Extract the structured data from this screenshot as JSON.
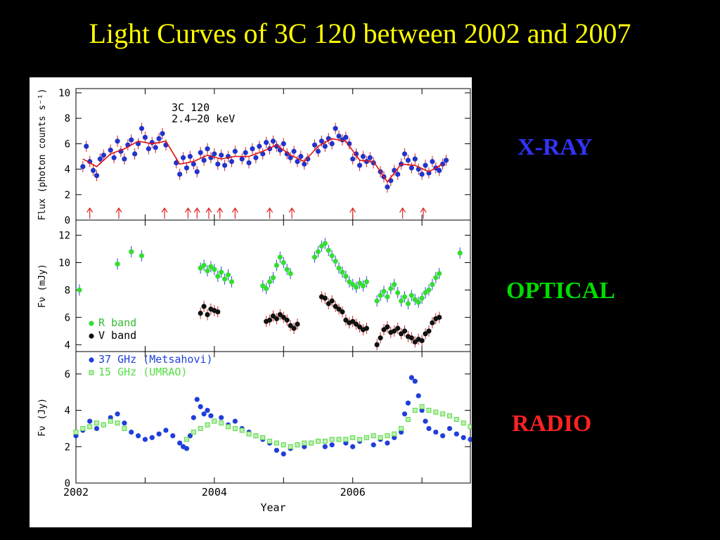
{
  "slide": {
    "title": "Light Curves of 3C 120 between 2002 and 2007",
    "labels": {
      "xray": "X-RAY",
      "optical": "OPTICAL",
      "radio": "RADIO"
    }
  },
  "colors": {
    "title": "#ffff00",
    "xray": "#3333ff",
    "optical": "#00dd00",
    "radio": "#ff2222",
    "background": "#000000"
  },
  "chart_data": [
    {
      "type": "scatter",
      "panel": "xray",
      "title": "",
      "annotation": [
        "3C 120",
        "2.4–20 keV"
      ],
      "ylabel": "Flux (photon counts s⁻¹)",
      "xlim": [
        2002.0,
        2007.7
      ],
      "ylim": [
        0,
        10
      ],
      "yticks": [
        0,
        2,
        4,
        6,
        8,
        10
      ],
      "grid": false,
      "flare_arrows_year": [
        2002.2,
        2002.62,
        2003.28,
        2003.62,
        2003.75,
        2003.92,
        2004.08,
        2004.3,
        2004.8,
        2005.12,
        2006.0,
        2006.72,
        2007.02
      ],
      "series": [
        {
          "marker": "blue circle",
          "x": [
            2002.1,
            2002.15,
            2002.2,
            2002.25,
            2002.3,
            2002.35,
            2002.4,
            2002.5,
            2002.55,
            2002.6,
            2002.65,
            2002.7,
            2002.75,
            2002.8,
            2002.85,
            2002.9,
            2002.95,
            2003.0,
            2003.05,
            2003.1,
            2003.15,
            2003.2,
            2003.25,
            2003.3,
            2003.45,
            2003.5,
            2003.55,
            2003.6,
            2003.65,
            2003.7,
            2003.75,
            2003.8,
            2003.85,
            2003.9,
            2003.95,
            2004.0,
            2004.05,
            2004.1,
            2004.15,
            2004.2,
            2004.25,
            2004.3,
            2004.4,
            2004.45,
            2004.5,
            2004.55,
            2004.6,
            2004.65,
            2004.7,
            2004.75,
            2004.8,
            2004.85,
            2004.9,
            2004.95,
            2005.0,
            2005.05,
            2005.1,
            2005.15,
            2005.2,
            2005.25,
            2005.3,
            2005.35,
            2005.45,
            2005.5,
            2005.55,
            2005.6,
            2005.65,
            2005.7,
            2005.75,
            2005.8,
            2005.85,
            2005.9,
            2005.95,
            2006.0,
            2006.05,
            2006.1,
            2006.15,
            2006.2,
            2006.25,
            2006.3,
            2006.4,
            2006.45,
            2006.5,
            2006.55,
            2006.6,
            2006.65,
            2006.7,
            2006.75,
            2006.8,
            2006.85,
            2006.9,
            2006.95,
            2007.0,
            2007.05,
            2007.1,
            2007.15,
            2007.2,
            2007.25,
            2007.3,
            2007.35
          ],
          "y": [
            4.2,
            5.8,
            4.6,
            3.9,
            3.5,
            4.8,
            5.1,
            5.5,
            4.9,
            6.2,
            5.4,
            4.8,
            5.9,
            6.3,
            5.2,
            6.0,
            7.2,
            6.5,
            5.6,
            6.1,
            5.7,
            6.4,
            6.8,
            5.9,
            4.5,
            3.6,
            4.9,
            4.1,
            5.0,
            4.4,
            3.8,
            5.3,
            4.7,
            5.6,
            4.9,
            5.2,
            4.4,
            5.1,
            4.3,
            5.0,
            4.6,
            5.4,
            4.8,
            5.3,
            4.5,
            5.6,
            4.9,
            5.8,
            5.2,
            6.1,
            5.6,
            6.2,
            5.8,
            5.5,
            6.0,
            5.2,
            4.9,
            5.4,
            4.6,
            5.0,
            4.4,
            4.8,
            5.9,
            5.4,
            6.2,
            5.8,
            6.4,
            6.0,
            7.2,
            6.6,
            6.3,
            6.5,
            6.0,
            4.8,
            5.2,
            4.3,
            5.0,
            4.6,
            4.9,
            4.5,
            3.8,
            3.4,
            2.6,
            3.1,
            3.9,
            3.6,
            4.4,
            5.2,
            4.7,
            4.1,
            4.8,
            4.0,
            3.6,
            4.3,
            3.7,
            4.6,
            4.1,
            3.9,
            4.4,
            4.7
          ]
        },
        {
          "marker": "red line",
          "x": [
            2002.1,
            2002.3,
            2002.5,
            2002.7,
            2002.9,
            2003.1,
            2003.3,
            2003.5,
            2003.7,
            2003.9,
            2004.1,
            2004.3,
            2004.5,
            2004.7,
            2004.9,
            2005.1,
            2005.3,
            2005.5,
            2005.7,
            2005.9,
            2006.1,
            2006.3,
            2006.5,
            2006.7,
            2006.9,
            2007.1,
            2007.3
          ],
          "y": [
            4.8,
            4.2,
            5.2,
            5.6,
            6.2,
            6.0,
            6.2,
            4.4,
            4.6,
            5.1,
            4.8,
            5.0,
            5.0,
            5.4,
            5.9,
            5.1,
            4.6,
            5.8,
            6.4,
            6.2,
            4.7,
            4.6,
            3.0,
            4.4,
            4.3,
            3.8,
            4.4
          ]
        }
      ]
    },
    {
      "type": "scatter",
      "panel": "optical",
      "title": "",
      "ylabel": "Fν (mJy)",
      "xlim": [
        2002.0,
        2007.7
      ],
      "ylim": [
        3.5,
        12.8
      ],
      "yticks": [
        4,
        6,
        8,
        10,
        12
      ],
      "legend": "bottom-left",
      "grid": false,
      "series": [
        {
          "name": "R band",
          "color": "#33dd33",
          "x": [
            2002.05,
            2002.6,
            2002.8,
            2002.95,
            2003.8,
            2003.85,
            2003.9,
            2003.95,
            2004.0,
            2004.05,
            2004.1,
            2004.15,
            2004.2,
            2004.25,
            2004.7,
            2004.75,
            2004.8,
            2004.85,
            2004.9,
            2004.95,
            2005.0,
            2005.05,
            2005.1,
            2005.45,
            2005.5,
            2005.55,
            2005.6,
            2005.65,
            2005.7,
            2005.75,
            2005.8,
            2005.85,
            2005.9,
            2005.95,
            2006.0,
            2006.05,
            2006.1,
            2006.15,
            2006.2,
            2006.35,
            2006.4,
            2006.45,
            2006.5,
            2006.55,
            2006.6,
            2006.65,
            2006.7,
            2006.75,
            2006.8,
            2006.85,
            2006.9,
            2006.95,
            2007.0,
            2007.05,
            2007.1,
            2007.15,
            2007.2,
            2007.25,
            2007.55
          ],
          "y": [
            8.0,
            9.9,
            10.8,
            10.5,
            9.6,
            9.8,
            9.4,
            9.7,
            9.5,
            9.0,
            9.3,
            8.8,
            9.1,
            8.6,
            8.3,
            8.1,
            8.6,
            8.9,
            9.8,
            10.4,
            10.0,
            9.5,
            9.2,
            10.4,
            10.8,
            11.2,
            11.4,
            10.9,
            10.5,
            10.1,
            9.6,
            9.3,
            9.0,
            8.6,
            8.4,
            8.2,
            8.5,
            8.3,
            8.6,
            7.2,
            7.6,
            7.9,
            7.5,
            8.1,
            8.4,
            7.8,
            7.2,
            7.5,
            7.0,
            7.6,
            7.3,
            7.1,
            7.4,
            7.8,
            8.0,
            8.4,
            8.9,
            9.2,
            10.7
          ]
        },
        {
          "name": "V band",
          "color": "#111111",
          "x": [
            2003.8,
            2003.85,
            2003.9,
            2003.95,
            2004.0,
            2004.05,
            2004.75,
            2004.8,
            2004.85,
            2004.9,
            2004.95,
            2005.0,
            2005.05,
            2005.1,
            2005.15,
            2005.2,
            2005.55,
            2005.6,
            2005.65,
            2005.7,
            2005.75,
            2005.8,
            2005.85,
            2005.9,
            2005.95,
            2006.0,
            2006.05,
            2006.1,
            2006.15,
            2006.2,
            2006.35,
            2006.4,
            2006.45,
            2006.5,
            2006.55,
            2006.6,
            2006.65,
            2006.7,
            2006.75,
            2006.8,
            2006.85,
            2006.9,
            2006.95,
            2007.0,
            2007.05,
            2007.1,
            2007.15,
            2007.2,
            2007.25
          ],
          "y": [
            6.3,
            6.8,
            6.2,
            6.6,
            6.5,
            6.4,
            5.7,
            5.8,
            6.1,
            5.9,
            6.2,
            6.0,
            5.8,
            5.4,
            5.2,
            5.5,
            7.5,
            7.4,
            7.0,
            7.2,
            6.8,
            6.6,
            6.4,
            5.8,
            5.6,
            5.7,
            5.5,
            5.3,
            5.1,
            5.2,
            4.0,
            4.5,
            5.1,
            5.3,
            4.9,
            5.0,
            5.2,
            4.8,
            5.0,
            4.6,
            4.5,
            4.2,
            4.4,
            4.3,
            4.8,
            5.0,
            5.6,
            5.9,
            6.0
          ]
        }
      ]
    },
    {
      "type": "scatter",
      "panel": "radio",
      "title": "",
      "xlabel": "Year",
      "ylabel": "Fν (Jy)",
      "xlim": [
        2002.0,
        2007.7
      ],
      "ylim": [
        0,
        7
      ],
      "yticks": [
        0,
        2,
        4,
        6
      ],
      "xticks": [
        2002,
        2004,
        2006
      ],
      "legend": "top-left",
      "grid": false,
      "series": [
        {
          "name": "37 GHz (Metsahovi)",
          "color": "#1f3fd9",
          "x": [
            2002.0,
            2002.1,
            2002.2,
            2002.3,
            2002.4,
            2002.5,
            2002.6,
            2002.7,
            2002.8,
            2002.9,
            2003.0,
            2003.1,
            2003.2,
            2003.3,
            2003.4,
            2003.5,
            2003.55,
            2003.6,
            2003.65,
            2003.7,
            2003.75,
            2003.8,
            2003.85,
            2003.9,
            2003.95,
            2004.0,
            2004.1,
            2004.2,
            2004.3,
            2004.4,
            2004.5,
            2004.6,
            2004.7,
            2004.8,
            2004.9,
            2005.0,
            2005.1,
            2005.2,
            2005.3,
            2005.4,
            2005.5,
            2005.6,
            2005.7,
            2005.8,
            2005.9,
            2006.0,
            2006.1,
            2006.3,
            2006.4,
            2006.5,
            2006.6,
            2006.7,
            2006.75,
            2006.8,
            2006.85,
            2006.9,
            2006.95,
            2007.0,
            2007.05,
            2007.1,
            2007.2,
            2007.3,
            2007.4,
            2007.5,
            2007.6,
            2007.7
          ],
          "y": [
            2.6,
            2.9,
            3.4,
            3.0,
            3.2,
            3.6,
            3.8,
            3.3,
            2.8,
            2.6,
            2.4,
            2.5,
            2.7,
            2.9,
            2.6,
            2.2,
            2.0,
            1.9,
            2.6,
            3.6,
            4.6,
            4.2,
            3.8,
            4.0,
            3.7,
            3.4,
            3.6,
            3.2,
            3.4,
            3.0,
            2.8,
            2.6,
            2.4,
            2.2,
            1.8,
            1.6,
            1.9,
            2.1,
            2.0,
            2.2,
            2.3,
            2.0,
            2.1,
            2.4,
            2.2,
            2.0,
            2.3,
            2.1,
            2.4,
            2.2,
            2.5,
            2.8,
            3.8,
            4.4,
            5.8,
            5.6,
            4.8,
            4.0,
            3.4,
            3.0,
            2.8,
            2.6,
            3.0,
            2.7,
            2.5,
            2.4
          ]
        },
        {
          "name": "15 GHz (UMRAO)",
          "color": "#55dd44",
          "x": [
            2002.0,
            2002.1,
            2002.2,
            2002.3,
            2002.4,
            2002.5,
            2002.6,
            2002.7,
            2003.6,
            2003.7,
            2003.8,
            2003.9,
            2004.0,
            2004.1,
            2004.2,
            2004.3,
            2004.4,
            2004.5,
            2004.6,
            2004.7,
            2004.8,
            2004.9,
            2005.0,
            2005.1,
            2005.2,
            2005.3,
            2005.4,
            2005.5,
            2005.6,
            2005.7,
            2005.8,
            2005.9,
            2006.0,
            2006.1,
            2006.2,
            2006.3,
            2006.4,
            2006.5,
            2006.6,
            2006.7,
            2006.8,
            2006.9,
            2007.0,
            2007.1,
            2007.2,
            2007.3,
            2007.4,
            2007.5,
            2007.6,
            2007.7
          ],
          "y": [
            2.8,
            3.0,
            3.1,
            3.3,
            3.2,
            3.4,
            3.3,
            3.0,
            2.4,
            2.8,
            3.0,
            3.2,
            3.4,
            3.3,
            3.1,
            3.0,
            2.9,
            2.7,
            2.6,
            2.5,
            2.3,
            2.2,
            2.1,
            2.0,
            2.1,
            2.2,
            2.2,
            2.3,
            2.3,
            2.4,
            2.4,
            2.4,
            2.5,
            2.4,
            2.5,
            2.6,
            2.5,
            2.6,
            2.7,
            3.0,
            3.5,
            4.0,
            4.2,
            4.0,
            3.9,
            3.8,
            3.7,
            3.5,
            3.3,
            3.1
          ]
        }
      ]
    }
  ]
}
